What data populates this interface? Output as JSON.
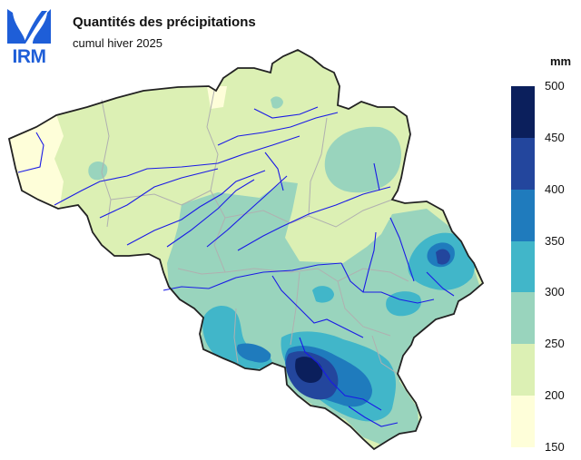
{
  "header": {
    "logo_text": "IRM",
    "title": "Quantités des précipitations",
    "subtitle": "cumul hiver 2025"
  },
  "legend": {
    "unit": "mm",
    "ticks": [
      "500",
      "450",
      "400",
      "350",
      "300",
      "250",
      "200",
      "150"
    ],
    "classes": [
      {
        "range": [
          450,
          500
        ],
        "color": "#0b1f5c"
      },
      {
        "range": [
          400,
          450
        ],
        "color": "#23469d"
      },
      {
        "range": [
          350,
          400
        ],
        "color": "#1f7bbd"
      },
      {
        "range": [
          300,
          350
        ],
        "color": "#41b6c9"
      },
      {
        "range": [
          250,
          300
        ],
        "color": "#99d4bd"
      },
      {
        "range": [
          200,
          250
        ],
        "color": "#dcf0b4"
      },
      {
        "range": [
          150,
          200
        ],
        "color": "#fefed9"
      }
    ]
  },
  "map": {
    "country_border_color": "#222222",
    "river_color": "#1a1ae6",
    "province_border_color": "#b0b0b0"
  }
}
